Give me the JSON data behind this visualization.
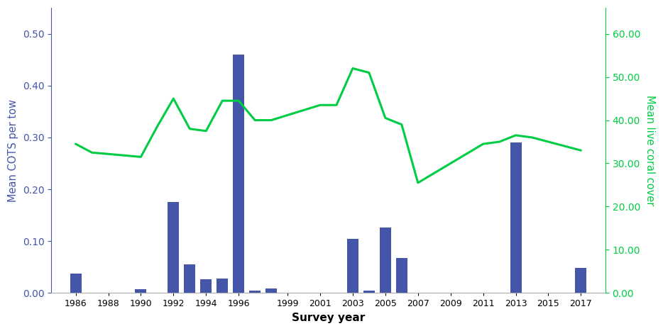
{
  "bar_years": [
    1986,
    1990,
    1992,
    1993,
    1994,
    1995,
    1996,
    1997,
    1998,
    2003,
    2004,
    2005,
    2006,
    2013,
    2017
  ],
  "bar_values": [
    0.038,
    0.007,
    0.175,
    0.055,
    0.027,
    0.028,
    0.46,
    0.005,
    0.008,
    0.104,
    0.005,
    0.126,
    0.068,
    0.29,
    0.048
  ],
  "line_x": [
    1986,
    1987,
    1990,
    1991,
    1992,
    1993,
    1994,
    1995,
    1996,
    1997,
    1998,
    2001,
    2002,
    2003,
    2004,
    2005,
    2006,
    2007,
    2011,
    2012,
    2013,
    2014,
    2017
  ],
  "line_y": [
    34.5,
    32.5,
    31.5,
    38.5,
    45.0,
    38.0,
    37.5,
    44.5,
    44.5,
    40.0,
    40.0,
    43.5,
    43.5,
    52.0,
    51.0,
    40.5,
    39.0,
    25.5,
    34.5,
    35.0,
    36.5,
    36.0,
    33.0
  ],
  "bar_color": "#4455aa",
  "line_color": "#00cc44",
  "xlabel": "Survey year",
  "ylabel_left": "Mean COTS per tow",
  "ylabel_right": "Mean live coral cover",
  "ylim_left": [
    0,
    0.55
  ],
  "ylim_right": [
    0,
    66
  ],
  "yticks_left": [
    0.0,
    0.1,
    0.2,
    0.3,
    0.4,
    0.5
  ],
  "yticks_right": [
    0.0,
    10.0,
    20.0,
    30.0,
    40.0,
    50.0,
    60.0
  ],
  "xtick_positions": [
    1986,
    1988,
    1990,
    1992,
    1994,
    1996,
    1999,
    2001,
    2003,
    2005,
    2007,
    2009,
    2011,
    2013,
    2015,
    2017
  ],
  "xlim": [
    1984.5,
    2018.5
  ],
  "bar_width": 0.7
}
